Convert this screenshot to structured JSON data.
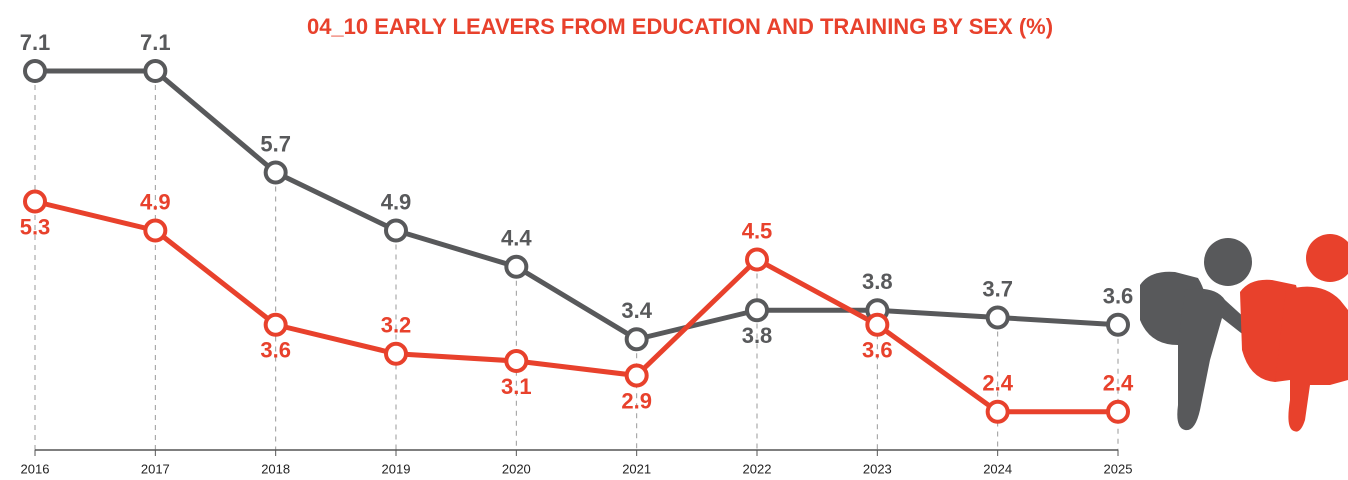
{
  "chart_data": {
    "type": "line",
    "title": "04_10 EARLY LEAVERS FROM EDUCATION AND TRAINING BY SEX (%)",
    "categories": [
      "2016",
      "2017",
      "2018",
      "2019",
      "2020",
      "2021",
      "2022",
      "2023",
      "2024",
      "2025"
    ],
    "series": [
      {
        "color": "#58595b",
        "values": [
          7.1,
          7.1,
          5.7,
          4.9,
          4.4,
          3.4,
          3.8,
          3.8,
          3.7,
          3.6
        ]
      },
      {
        "color": "#e8412c",
        "values": [
          5.3,
          4.9,
          3.6,
          3.2,
          3.1,
          2.9,
          4.5,
          3.6,
          2.4,
          2.4
        ]
      }
    ]
  }
}
